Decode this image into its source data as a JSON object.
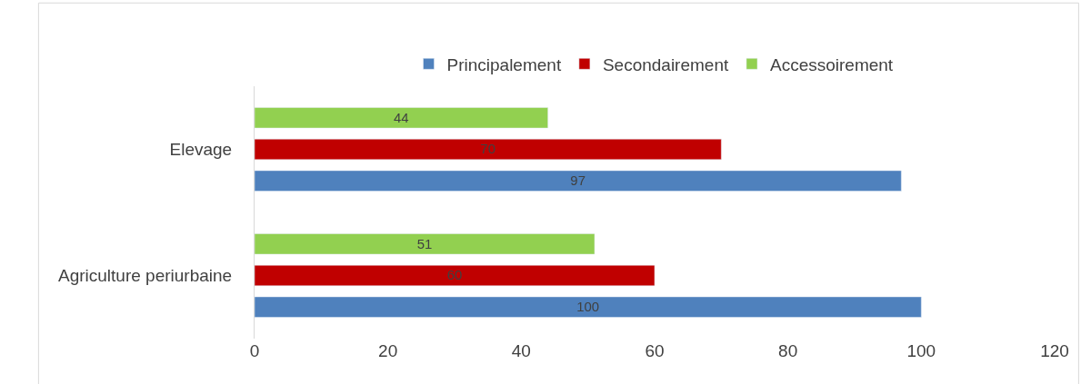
{
  "chart_data": {
    "type": "bar",
    "orientation": "horizontal",
    "categories": [
      "Elevage",
      "Agriculture periurbaine"
    ],
    "series": [
      {
        "name": "Principalement",
        "color": "#4f81bd",
        "values": [
          97,
          100
        ]
      },
      {
        "name": "Secondairement",
        "color": "#c00000",
        "values": [
          70,
          60
        ]
      },
      {
        "name": "Accessoirement",
        "color": "#92d050",
        "values": [
          44,
          51
        ]
      }
    ],
    "xlim": [
      0,
      120
    ],
    "xticks": [
      0,
      20,
      40,
      60,
      80,
      100,
      120
    ],
    "data_labels": true,
    "legend": "top"
  }
}
